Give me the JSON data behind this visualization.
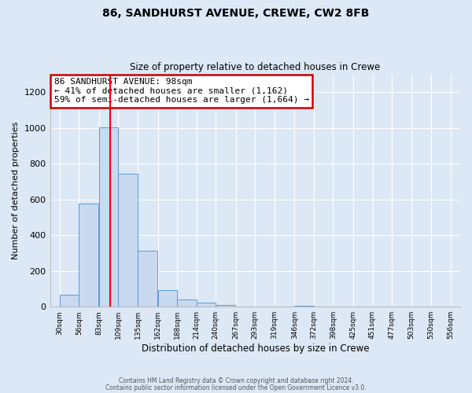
{
  "title": "86, SANDHURST AVENUE, CREWE, CW2 8FB",
  "subtitle": "Size of property relative to detached houses in Crewe",
  "xlabel": "Distribution of detached houses by size in Crewe",
  "ylabel": "Number of detached properties",
  "bar_color": "#c9d9f0",
  "bar_edge_color": "#5b9bd5",
  "background_color": "#dce8f5",
  "bin_labels": [
    "30sqm",
    "56sqm",
    "83sqm",
    "109sqm",
    "135sqm",
    "162sqm",
    "188sqm",
    "214sqm",
    "240sqm",
    "267sqm",
    "293sqm",
    "319sqm",
    "346sqm",
    "372sqm",
    "398sqm",
    "425sqm",
    "451sqm",
    "477sqm",
    "503sqm",
    "530sqm",
    "556sqm"
  ],
  "bin_edges": [
    30,
    56,
    83,
    109,
    135,
    162,
    188,
    214,
    240,
    267,
    293,
    319,
    346,
    372,
    398,
    425,
    451,
    477,
    503,
    530,
    556
  ],
  "bar_heights": [
    65,
    575,
    1005,
    745,
    315,
    95,
    40,
    22,
    8,
    0,
    0,
    0,
    4,
    0,
    0,
    0,
    0,
    0,
    0,
    0
  ],
  "ylim": [
    0,
    1300
  ],
  "yticks": [
    0,
    200,
    400,
    600,
    800,
    1000,
    1200
  ],
  "vline_x": 98,
  "annotation_line1": "86 SANDHURST AVENUE: 98sqm",
  "annotation_line2": "← 41% of detached houses are smaller (1,162)",
  "annotation_line3": "59% of semi-detached houses are larger (1,664) →",
  "annotation_box_facecolor": "#ffffff",
  "annotation_box_edgecolor": "#cc0000",
  "footer1": "Contains HM Land Registry data © Crown copyright and database right 2024.",
  "footer2": "Contains public sector information licensed under the Open Government Licence v3.0."
}
